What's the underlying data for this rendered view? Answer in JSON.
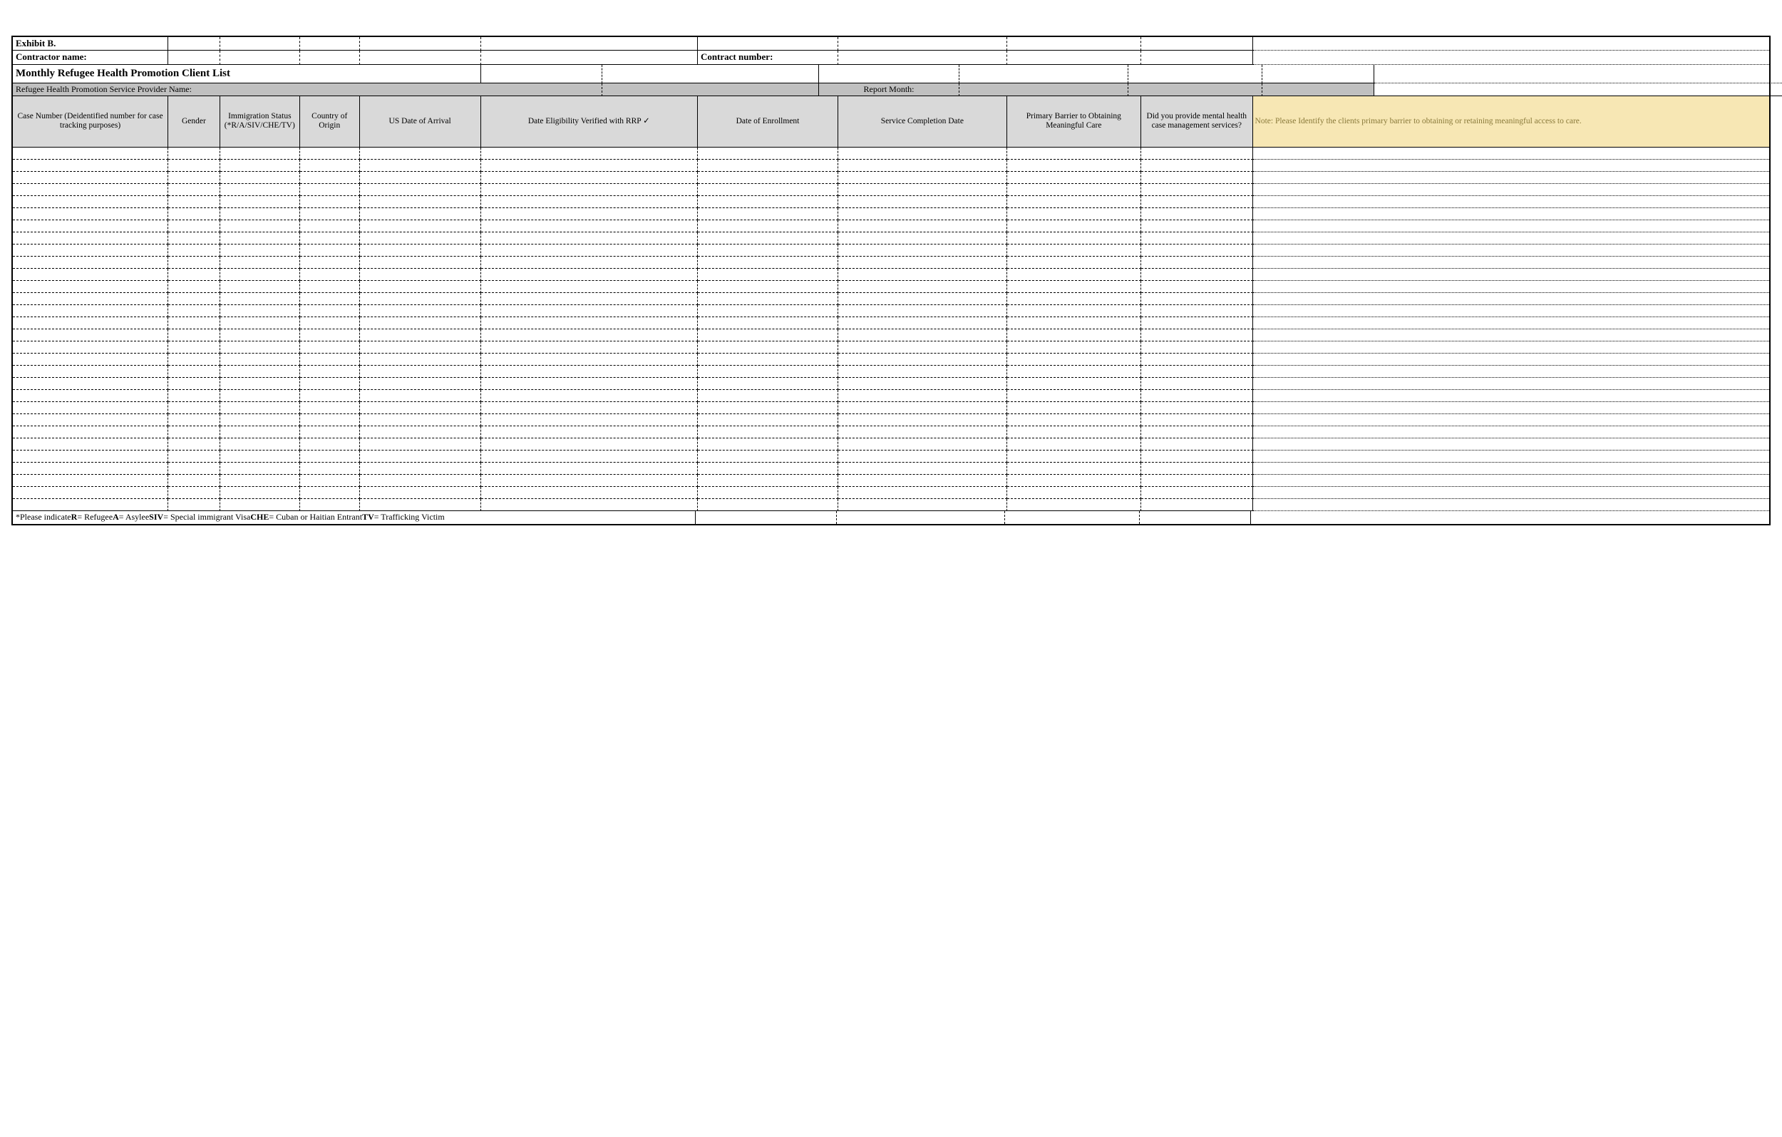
{
  "header": {
    "exhibit": "Exhibit B.",
    "contractor_label": "Contractor name:",
    "contract_number_label": "Contract number:",
    "title": "Monthly Refugee Health Promotion Client List",
    "provider_label": "Refugee Health Promotion Service Provider Name:",
    "report_month_label": "Report Month:"
  },
  "columns": {
    "case_number": "Case Number (Deidentified number for case tracking purposes)",
    "gender": "Gender",
    "immigration": "Immigration Status (*R/A/SIV/CHE/TV)",
    "country": "Country of Origin",
    "arrival": "US Date of Arrival",
    "eligibility": "Date Eligibility Verified with RRP ✓",
    "enrollment": "Date of Enrollment",
    "completion": "Service Completion Date",
    "barrier": "Primary Barrier to Obtaining Meaningful Care",
    "mhcase": "Did you provide mental health case management services?",
    "note": "Note: Please Identify the clients primary barrier to obtaining or retaining meaningful access to care."
  },
  "footnote": {
    "prefix": "*Please indicate ",
    "r_key": "R",
    "r_val": "= Refugee ",
    "a_key": "A",
    "a_val": "= Asylee ",
    "siv_key": "SIV",
    "siv_val": "= Special immigrant Visa ",
    "che_key": "CHE",
    "che_val": "=  Cuban or Haitian Entrant ",
    "tv_key": "TV",
    "tv_val": "= Trafficking Victim"
  },
  "data_row_count": 30,
  "colors": {
    "gray": "#c0c0c0",
    "ltgray": "#d9d9d9",
    "yellow": "#f7e7b4",
    "note_text": "#8a7a3a"
  }
}
